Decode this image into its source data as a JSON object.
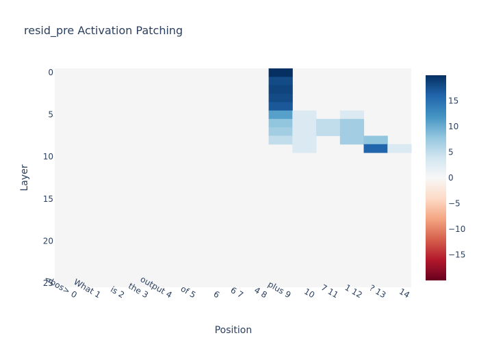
{
  "chart_data": {
    "type": "heatmap",
    "title": "resid_pre Activation Patching",
    "xlabel": "Position",
    "ylabel": "Layer",
    "x_categories": [
      "<bos> 0",
      "What 1",
      "is 2",
      "the 3",
      "output 4",
      "of 5",
      "6",
      "6 7",
      "4 8",
      "plus 9",
      "10",
      "7 11",
      "1 12",
      "? 13",
      "14"
    ],
    "y_categories": [
      0,
      1,
      2,
      3,
      4,
      5,
      6,
      7,
      8,
      9,
      10,
      11,
      12,
      13,
      14,
      15,
      16,
      17,
      18,
      19,
      20,
      21,
      22,
      23,
      24,
      25
    ],
    "y_tick_labels": [
      "0",
      "5",
      "10",
      "15",
      "20",
      "25"
    ],
    "colorscale": "RdBu",
    "zlim": [
      -20,
      20
    ],
    "colorbar_ticks": [
      "15",
      "10",
      "5",
      "0",
      "−5",
      "−10",
      "−15"
    ],
    "values": [
      [
        0,
        0,
        0,
        0,
        0,
        0,
        0,
        0,
        0,
        20,
        0,
        0,
        0,
        0,
        0
      ],
      [
        0,
        0,
        0,
        0,
        0,
        0,
        0,
        0,
        0,
        18,
        0,
        0,
        0,
        0,
        0
      ],
      [
        0,
        0,
        0,
        0,
        0,
        0,
        0,
        0,
        0,
        18.5,
        0,
        0,
        0,
        0,
        0
      ],
      [
        0,
        0,
        0,
        0,
        0,
        0,
        0,
        0,
        0,
        18,
        0,
        0,
        0,
        0,
        0
      ],
      [
        0,
        0,
        0,
        0,
        0,
        0,
        0,
        0,
        0,
        17,
        0,
        0,
        0,
        0,
        0
      ],
      [
        0,
        0,
        0,
        0,
        0,
        0,
        0,
        0,
        0,
        11,
        3,
        0,
        3,
        0,
        0
      ],
      [
        0,
        0,
        0,
        0,
        0,
        0,
        0,
        0,
        0,
        8,
        3,
        5,
        7,
        0,
        0
      ],
      [
        0,
        0,
        0,
        0,
        0,
        0,
        0,
        0,
        0,
        7,
        3,
        5,
        7,
        0,
        0
      ],
      [
        0,
        0,
        0,
        0,
        0,
        0,
        0,
        0,
        0,
        5,
        3,
        0,
        7,
        8,
        0
      ],
      [
        0,
        0,
        0,
        0,
        0,
        0,
        0,
        0,
        0,
        0,
        3,
        0,
        0,
        16,
        3
      ],
      [
        0,
        0,
        0,
        0,
        0,
        0,
        0,
        0,
        0,
        0,
        0,
        0,
        0,
        0,
        0
      ],
      [
        0,
        0,
        0,
        0,
        0,
        0,
        0,
        0,
        0,
        0,
        0,
        0,
        0,
        0,
        0
      ],
      [
        0,
        0,
        0,
        0,
        0,
        0,
        0,
        0,
        0,
        0,
        0,
        0,
        0,
        0,
        0
      ],
      [
        0,
        0,
        0,
        0,
        0,
        0,
        0,
        0,
        0,
        0,
        0,
        0,
        0,
        0,
        0
      ],
      [
        0,
        0,
        0,
        0,
        0,
        0,
        0,
        0,
        0,
        0,
        0,
        0,
        0,
        0,
        0
      ],
      [
        0,
        0,
        0,
        0,
        0,
        0,
        0,
        0,
        0,
        0,
        0,
        0,
        0,
        0,
        0
      ],
      [
        0,
        0,
        0,
        0,
        0,
        0,
        0,
        0,
        0,
        0,
        0,
        0,
        0,
        0,
        0
      ],
      [
        0,
        0,
        0,
        0,
        0,
        0,
        0,
        0,
        0,
        0,
        0,
        0,
        0,
        0,
        0
      ],
      [
        0,
        0,
        0,
        0,
        0,
        0,
        0,
        0,
        0,
        0,
        0,
        0,
        0,
        0,
        0
      ],
      [
        0,
        0,
        0,
        0,
        0,
        0,
        0,
        0,
        0,
        0,
        0,
        0,
        0,
        0,
        0
      ],
      [
        0,
        0,
        0,
        0,
        0,
        0,
        0,
        0,
        0,
        0,
        0,
        0,
        0,
        0,
        0
      ],
      [
        0,
        0,
        0,
        0,
        0,
        0,
        0,
        0,
        0,
        0,
        0,
        0,
        0,
        0,
        0
      ],
      [
        0,
        0,
        0,
        0,
        0,
        0,
        0,
        0,
        0,
        0,
        0,
        0,
        0,
        0,
        0
      ],
      [
        0,
        0,
        0,
        0,
        0,
        0,
        0,
        0,
        0,
        0,
        0,
        0,
        0,
        0,
        0
      ],
      [
        0,
        0,
        0,
        0,
        0,
        0,
        0,
        0,
        0,
        0,
        0,
        0,
        0,
        0,
        0
      ],
      [
        0,
        0,
        0,
        0,
        0,
        0,
        0,
        0,
        0,
        0,
        0,
        0,
        0,
        0,
        0
      ]
    ]
  }
}
